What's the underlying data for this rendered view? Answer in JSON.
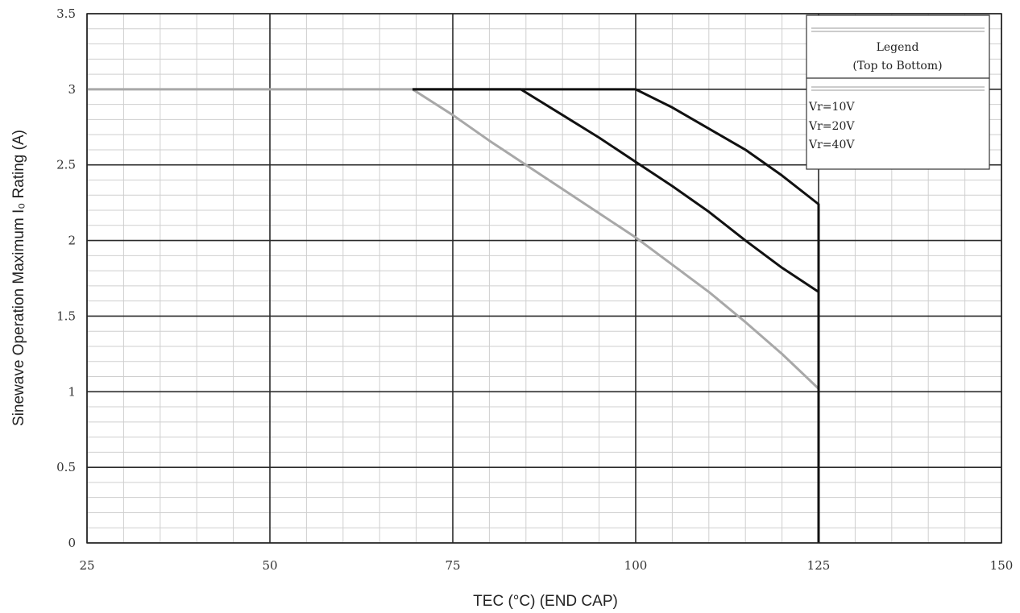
{
  "chart_data": {
    "type": "line",
    "xlabel": "TEC (°C) (END CAP)",
    "ylabel": "Sinewave Operation Maximum I₀ Rating (A)",
    "xlim": [
      25,
      150
    ],
    "ylim": [
      0,
      3.5
    ],
    "x_ticks": [
      25,
      50,
      75,
      100,
      125,
      150
    ],
    "x_tick_labels": [
      "25",
      "50",
      "75",
      "100",
      "125",
      "150"
    ],
    "y_ticks": [
      0,
      0.5,
      1,
      1.5,
      2,
      2.5,
      3,
      3.5
    ],
    "y_tick_labels": [
      "0",
      "0.5",
      "1",
      "1.5",
      "2",
      "2.5",
      "3",
      "3.5"
    ],
    "x_minor_step": 5,
    "y_minor_step": 0.1,
    "grid": true,
    "legend_position": "top-right",
    "legend": {
      "title": "Legend",
      "subtitle": "(Top to Bottom)",
      "entries": [
        "Vr=10V",
        "Vr=20V",
        "Vr=40V"
      ]
    },
    "series": [
      {
        "name": "Vr=10V",
        "color": "#111111",
        "points": [
          [
            69.5,
            3.0
          ],
          [
            100,
            3.0
          ],
          [
            105,
            2.88
          ],
          [
            110,
            2.74
          ],
          [
            115,
            2.6
          ],
          [
            120,
            2.43
          ],
          [
            125,
            2.24
          ],
          [
            125,
            0
          ]
        ]
      },
      {
        "name": "Vr=20V",
        "color": "#111111",
        "points": [
          [
            69.5,
            3.0
          ],
          [
            84.3,
            3.0
          ],
          [
            90,
            2.83
          ],
          [
            95,
            2.68
          ],
          [
            100,
            2.52
          ],
          [
            105,
            2.36
          ],
          [
            110,
            2.19
          ],
          [
            115,
            2.0
          ],
          [
            120,
            1.82
          ],
          [
            125,
            1.66
          ],
          [
            125,
            0
          ]
        ]
      },
      {
        "name": "Vr=40V",
        "color": "#a8a8a8",
        "points": [
          [
            25,
            3.0
          ],
          [
            69.5,
            3.0
          ],
          [
            75,
            2.83
          ],
          [
            80,
            2.66
          ],
          [
            85,
            2.5
          ],
          [
            90,
            2.34
          ],
          [
            95,
            2.18
          ],
          [
            100,
            2.02
          ],
          [
            105,
            1.84
          ],
          [
            110,
            1.66
          ],
          [
            115,
            1.46
          ],
          [
            120,
            1.25
          ],
          [
            125,
            1.02
          ],
          [
            125,
            0
          ]
        ]
      }
    ]
  }
}
